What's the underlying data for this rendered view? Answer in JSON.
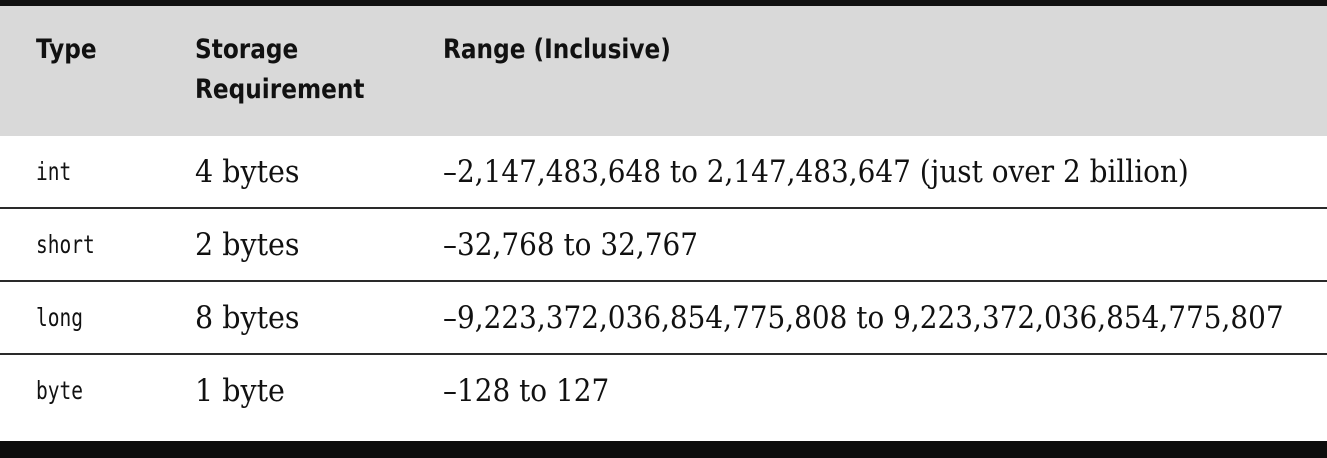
{
  "table": {
    "headers": {
      "type": "Type",
      "storage": "Storage\nRequirement",
      "range": "Range (Inclusive)"
    },
    "rows": [
      {
        "type": "int",
        "storage": "4 bytes",
        "range": "–2,147,483,648 to 2,147,483,647 (just over 2 billion)"
      },
      {
        "type": "short",
        "storage": "2 bytes",
        "range": "–32,768 to 32,767"
      },
      {
        "type": "long",
        "storage": "8 bytes",
        "range": "–9,223,372,036,854,775,808 to 9,223,372,036,854,775,807"
      },
      {
        "type": "byte",
        "storage": "1 byte",
        "range": "–128 to 127"
      }
    ]
  }
}
